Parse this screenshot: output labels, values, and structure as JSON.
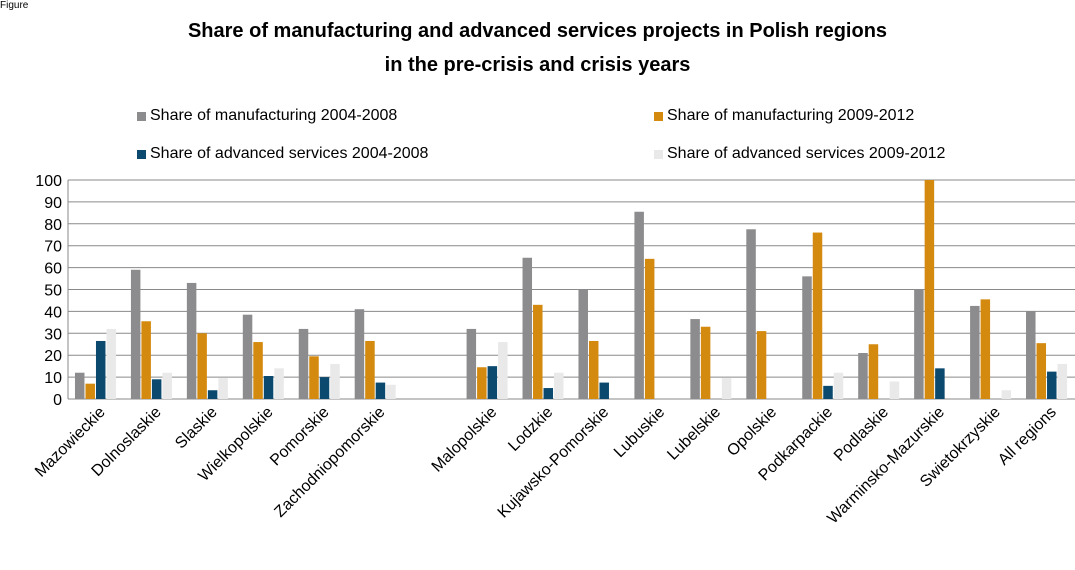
{
  "figure_label": "Figure",
  "chart_data": {
    "type": "bar",
    "title_lines": [
      "Share of manufacturing and advanced services projects in Polish regions",
      "in the pre-crisis and crisis years"
    ],
    "xlabel": "",
    "ylabel": "",
    "ylim": [
      0,
      100
    ],
    "yticks": [
      "0",
      "10",
      "20",
      "30",
      "40",
      "50",
      "60",
      "70",
      "80",
      "90",
      "100"
    ],
    "grid": true,
    "legend_placement": "top",
    "categories": [
      "Mazowieckie",
      "Dolnoslaskie",
      "Slaskie",
      "Wielkopolskie",
      "Pomorskie",
      "Zachodniopomorskie",
      "",
      "Malopolskie",
      "Lodzkie",
      "Kujawsko-Pomorskie",
      "Lubuskie",
      "Lubelskie",
      "Opolskie",
      "Podkarpackie",
      "Podlaskie",
      "Warminsko-Mazurskie",
      "Swietokrzyskie",
      "All regions"
    ],
    "series": [
      {
        "name": "Share of manufacturing 2004-2008",
        "color": "#8c8c8e",
        "values": [
          12,
          59,
          53,
          38.5,
          32,
          41,
          null,
          32,
          64.5,
          50,
          85.5,
          36.5,
          77.5,
          56,
          21,
          50,
          42.5,
          40
        ]
      },
      {
        "name": "Share of manufacturing 2009-2012",
        "color": "#d48a0f",
        "values": [
          7,
          35.5,
          30,
          26,
          19.5,
          26.5,
          null,
          14.5,
          43,
          26.5,
          64,
          33,
          31,
          76,
          25,
          100,
          45.5,
          25.5
        ]
      },
      {
        "name": "Share of advanced services 2004-2008",
        "color": "#0b4a6e",
        "values": [
          26.5,
          9,
          4,
          10.5,
          10,
          7.5,
          null,
          15,
          5,
          7.5,
          0,
          0,
          0,
          6,
          0,
          14,
          0,
          12.5
        ]
      },
      {
        "name": "Share of advanced services 2009-2012",
        "color": "#e9e9e9",
        "values": [
          32,
          12,
          9.5,
          14,
          16,
          6.5,
          null,
          26,
          12,
          0,
          0,
          9.5,
          0,
          12,
          8,
          0,
          4,
          16
        ]
      }
    ]
  }
}
